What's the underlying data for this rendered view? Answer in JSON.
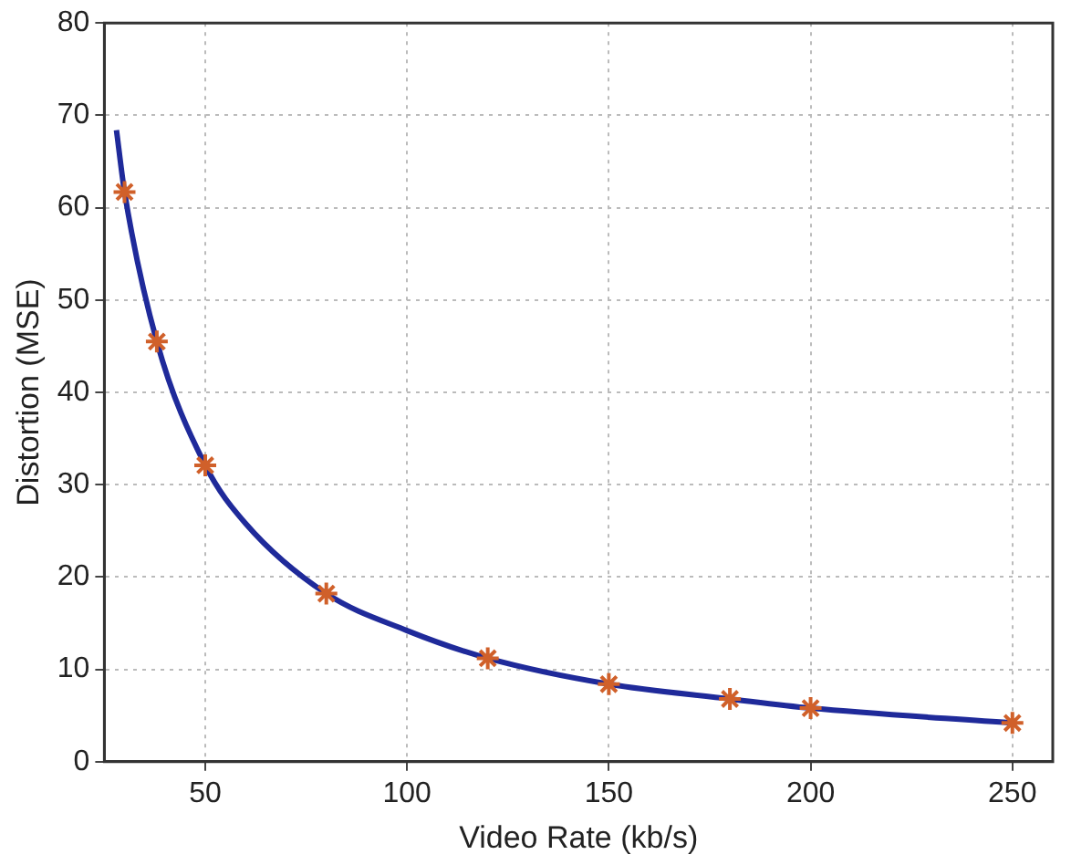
{
  "chart_data": {
    "type": "line",
    "xlabel": "Video Rate (kb/s)",
    "ylabel": "Distortion (MSE)",
    "xlim": [
      25,
      260
    ],
    "xticks": [
      50,
      100,
      150,
      200,
      250
    ],
    "ylim": [
      0,
      80
    ],
    "yticks": [
      0,
      10,
      20,
      30,
      40,
      50,
      60,
      70,
      80
    ],
    "grid": true,
    "series": [
      {
        "color": "#1f2a9a",
        "marker": "none",
        "line_style": "solid",
        "x": [
          28,
          30,
          38,
          50,
          60,
          80,
          100,
          120,
          150,
          180,
          200,
          250
        ],
        "values": [
          68.4,
          61.7,
          45.5,
          32.1,
          25.8,
          18.2,
          14.2,
          11.2,
          8.4,
          6.8,
          5.8,
          4.2
        ]
      },
      {
        "type": "scatter",
        "color": "#d0602a",
        "marker": "cross",
        "x": [
          30,
          38,
          50,
          80,
          120,
          150,
          180,
          200,
          250
        ],
        "values": [
          61.7,
          45.5,
          32.1,
          18.2,
          11.2,
          8.4,
          6.8,
          5.8,
          4.2
        ]
      }
    ]
  }
}
